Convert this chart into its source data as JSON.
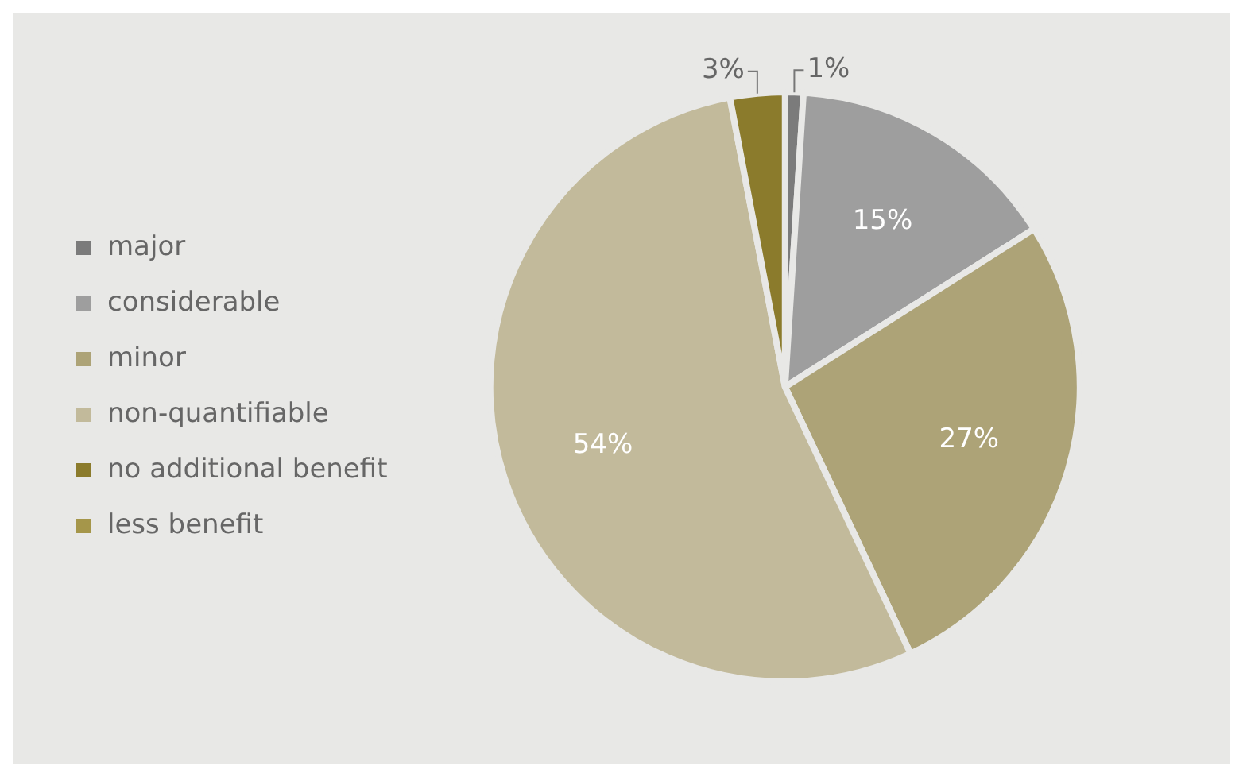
{
  "chart_data": {
    "type": "pie",
    "categories": [
      "major",
      "considerable",
      "minor",
      "non-quantifiable",
      "no additional benefit",
      "less benefit"
    ],
    "values": [
      1,
      15,
      27,
      54,
      3,
      0
    ],
    "colors": [
      "#7b7b7b",
      "#9e9e9e",
      "#ada377",
      "#c2ba9b",
      "#8b7b2c",
      "#a5964a"
    ],
    "value_labels": [
      "1%",
      "15%",
      "27%",
      "54%",
      "3%",
      null
    ],
    "legend": "left"
  }
}
